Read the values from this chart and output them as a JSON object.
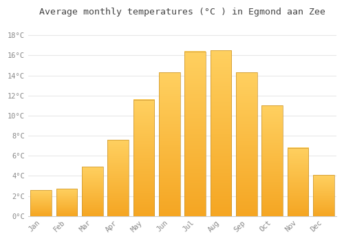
{
  "months": [
    "Jan",
    "Feb",
    "Mar",
    "Apr",
    "May",
    "Jun",
    "Jul",
    "Aug",
    "Sep",
    "Oct",
    "Nov",
    "Dec"
  ],
  "values": [
    2.6,
    2.7,
    4.9,
    7.6,
    11.6,
    14.3,
    16.4,
    16.5,
    14.3,
    11.0,
    6.8,
    4.1
  ],
  "bar_color_bottom": "#F5A623",
  "bar_color_top": "#FFD966",
  "bar_color_edge": "#C8922A",
  "background_color": "#FFFFFF",
  "plot_bg_color": "#FFFFFF",
  "title": "Average monthly temperatures (°C ) in Egmond aan Zee",
  "title_fontsize": 9.5,
  "ytick_labels": [
    "0°C",
    "2°C",
    "4°C",
    "6°C",
    "8°C",
    "10°C",
    "12°C",
    "14°C",
    "16°C",
    "18°C"
  ],
  "ytick_values": [
    0,
    2,
    4,
    6,
    8,
    10,
    12,
    14,
    16,
    18
  ],
  "ylim": [
    0,
    19.5
  ],
  "grid_color": "#E8E8E8",
  "label_color": "#888888",
  "font_family": "monospace"
}
